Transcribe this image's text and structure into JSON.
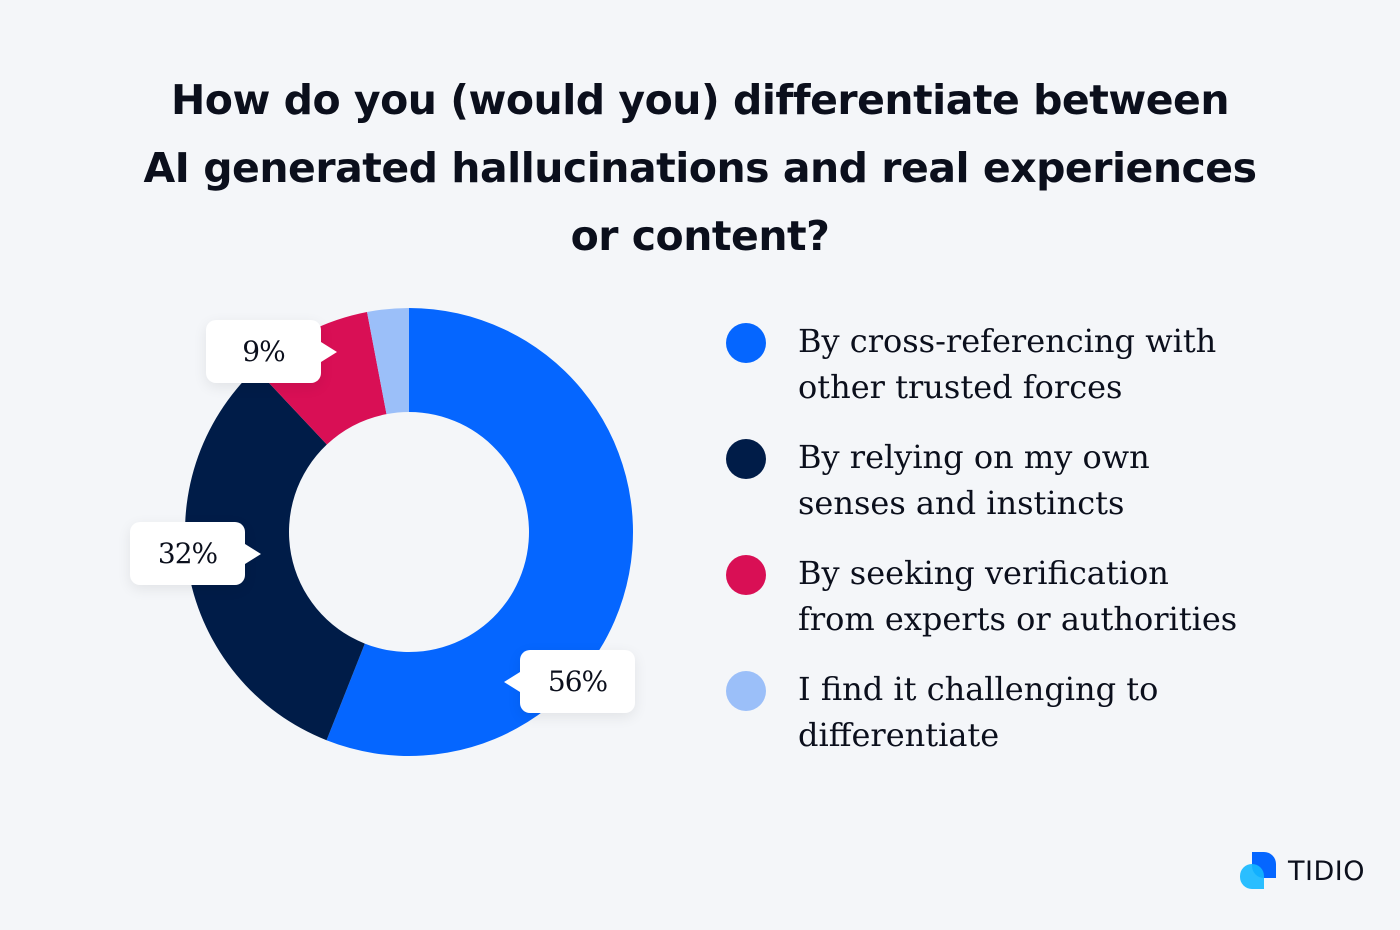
{
  "chart_data": {
    "type": "pie",
    "donut": true,
    "title_lines": [
      "How do you (would you) differentiate between",
      "AI generated hallucinations and real experiences",
      "or content?"
    ],
    "categories": [
      "By cross-referencing with other trusted forces",
      "By relying on my own senses and instincts",
      "By seeking verification from experts or authorities",
      "I find it challenging to differentiate"
    ],
    "legend_lines": [
      [
        "By cross-referencing with",
        "other trusted forces"
      ],
      [
        "By relying on my own",
        "senses and instincts"
      ],
      [
        "By seeking verification",
        "from experts or authorities"
      ],
      [
        "I find it challenging to",
        "differentiate"
      ]
    ],
    "values": [
      56,
      32,
      9,
      3
    ],
    "data_labels": [
      "56%",
      "32%",
      "9%",
      ""
    ],
    "colors": [
      "#0566FF",
      "#001C48",
      "#D90F55",
      "#9BBFF9"
    ],
    "legend_placement": "right"
  },
  "brand": {
    "name": "TIDIO"
  }
}
